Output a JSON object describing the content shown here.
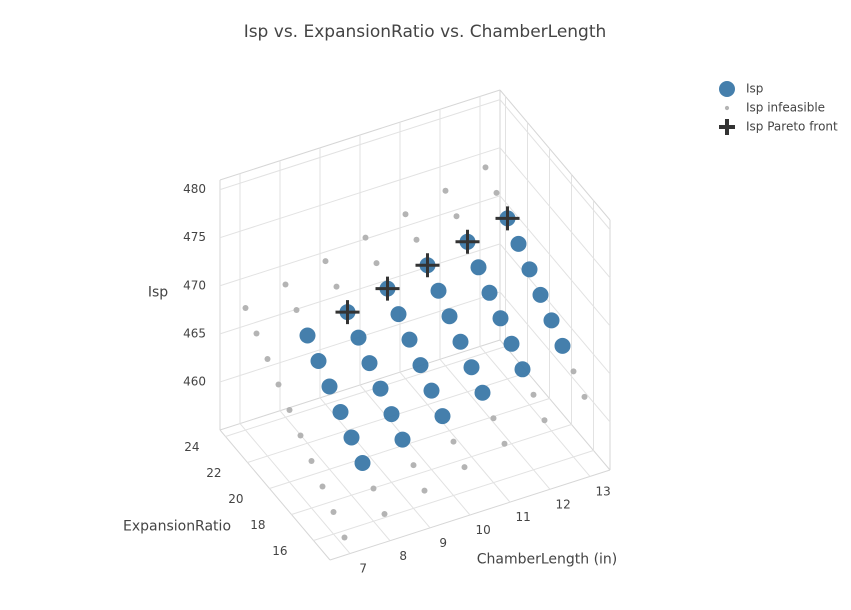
{
  "chart_data": {
    "type": "scatter3d",
    "title": "Isp vs. ExpansionRatio vs. ChamberLength",
    "xlabel": "ChamberLength (in)",
    "ylabel": "ExpansionRatio",
    "zlabel": "Isp",
    "xlim": [
      6.5,
      13.5
    ],
    "ylim": [
      14.5,
      24.5
    ],
    "zlim": [
      455,
      481
    ],
    "xticks": [
      7,
      8,
      9,
      10,
      11,
      12,
      13
    ],
    "yticks": [
      16,
      18,
      20,
      22,
      24
    ],
    "zticks": [
      460,
      465,
      470,
      475,
      480
    ],
    "grid": true,
    "legend": "top-right",
    "series": [
      {
        "name": "Isp infeasible",
        "color": "#b0b0b0",
        "marker": "circle",
        "size": 3,
        "x": [
          7,
          7,
          7,
          7,
          7,
          7,
          7,
          7,
          7,
          7,
          8,
          9,
          10,
          11,
          12,
          13,
          8,
          9,
          10,
          11,
          12,
          13,
          8,
          9,
          10,
          11,
          12,
          13,
          8,
          9,
          10,
          11,
          12,
          13
        ],
        "y": [
          15,
          16,
          17,
          18,
          19,
          20,
          21,
          22,
          23,
          24,
          15,
          15,
          15,
          15,
          15,
          15,
          16,
          16,
          16,
          16,
          16,
          16,
          23,
          23,
          23,
          23,
          23,
          23,
          24,
          24,
          24,
          24,
          24,
          24
        ],
        "z": [
          456,
          457.3,
          458.6,
          459.9,
          461.2,
          462.5,
          463.8,
          465.1,
          466.4,
          467.7,
          457.1,
          458.2,
          459.3,
          460.4,
          461.5,
          462.6,
          458.4,
          459.5,
          460.6,
          461.7,
          462.8,
          463.9,
          467.5,
          468.6,
          469.7,
          470.8,
          471.9,
          473,
          468.8,
          469.9,
          471,
          472.1,
          473.2,
          474.3
        ]
      },
      {
        "name": "Isp",
        "color": "#3b78a8",
        "marker": "circle",
        "size": 8,
        "x": [
          8,
          9,
          10,
          11,
          12,
          13,
          8,
          9,
          10,
          11,
          12,
          13,
          8,
          9,
          10,
          11,
          12,
          13,
          8,
          9,
          10,
          11,
          12,
          13,
          8,
          9,
          10,
          11,
          12,
          13,
          8,
          9,
          10,
          11,
          12,
          13
        ],
        "y": [
          17,
          17,
          17,
          17,
          17,
          17,
          18,
          18,
          18,
          18,
          18,
          18,
          19,
          19,
          19,
          19,
          19,
          19,
          20,
          20,
          20,
          20,
          20,
          20,
          21,
          21,
          21,
          21,
          21,
          21,
          22,
          22,
          22,
          22,
          22,
          22
        ],
        "z": [
          459.7,
          460.8,
          461.9,
          463,
          464.1,
          465.2,
          461,
          462.1,
          463.2,
          464.3,
          465.4,
          466.5,
          462.3,
          463.4,
          464.5,
          465.6,
          466.7,
          467.8,
          463.6,
          464.7,
          465.8,
          466.9,
          468,
          469.1,
          464.9,
          466,
          467.1,
          468.2,
          469.3,
          470.4,
          466.2,
          467.3,
          468.4,
          469.5,
          470.6,
          471.7
        ]
      },
      {
        "name": "Isp Pareto front",
        "color": "#333333",
        "marker": "cross",
        "size": 12,
        "x": [
          9,
          10,
          11,
          12,
          13
        ],
        "y": [
          22,
          22,
          22,
          22,
          22
        ],
        "z": [
          467.3,
          468.4,
          469.5,
          470.6,
          471.7
        ]
      }
    ]
  }
}
